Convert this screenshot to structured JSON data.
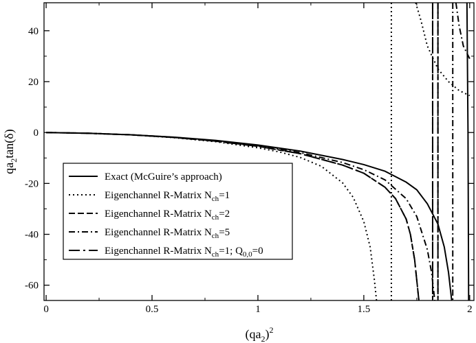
{
  "chart_data": {
    "type": "line",
    "xlabel": {
      "pre": "(qa",
      "sub": "2",
      "post": ")",
      "sup": "2"
    },
    "ylabel": {
      "pre": "qa",
      "sub": "2",
      "post": "tan(δ)"
    },
    "xlim": [
      -0.01,
      2.02
    ],
    "ylim": [
      -66,
      51
    ],
    "xticks": [
      0,
      0.5,
      1,
      1.5,
      2
    ],
    "xtick_labels": [
      "0",
      "0.5",
      "1",
      "1.5",
      "2"
    ],
    "yticks": [
      -60,
      -40,
      -20,
      0,
      20,
      40
    ],
    "ytick_labels": [
      "-60",
      "-40",
      "-20",
      "0",
      "20",
      "40"
    ],
    "grid": false,
    "legend_position": "lower-left",
    "series": [
      {
        "style": "solid",
        "legend": {
          "pre": "Exact (McGuire’s approach)",
          "sub": "",
          "post": "",
          "sub2": "",
          "post2": ""
        },
        "segments": [
          [
            [
              0,
              0
            ],
            [
              0.2,
              -0.3
            ],
            [
              0.4,
              -0.9
            ],
            [
              0.6,
              -1.8
            ],
            [
              0.8,
              -3.1
            ],
            [
              1.0,
              -4.9
            ],
            [
              1.2,
              -7.3
            ],
            [
              1.4,
              -10.6
            ],
            [
              1.5,
              -12.6
            ],
            [
              1.6,
              -15.2
            ],
            [
              1.7,
              -19.5
            ],
            [
              1.75,
              -22.5
            ],
            [
              1.8,
              -28
            ],
            [
              1.85,
              -36
            ],
            [
              1.88,
              -45
            ],
            [
              1.9,
              -55
            ],
            [
              1.915,
              -66
            ]
          ],
          [
            [
              1.987,
              51
            ],
            [
              1.992,
              0
            ],
            [
              1.995,
              -66
            ]
          ]
        ]
      },
      {
        "style": "dotted",
        "legend": {
          "pre": "Eigenchannel R-Matrix N",
          "sub": "ch",
          "post": "=1",
          "sub2": "",
          "post2": ""
        },
        "segments": [
          [
            [
              0,
              0
            ],
            [
              0.2,
              -0.3
            ],
            [
              0.4,
              -0.9
            ],
            [
              0.6,
              -2.0
            ],
            [
              0.8,
              -3.6
            ],
            [
              1.0,
              -6.0
            ],
            [
              1.1,
              -7.6
            ],
            [
              1.2,
              -9.8
            ],
            [
              1.3,
              -13.3
            ],
            [
              1.4,
              -19.8
            ],
            [
              1.45,
              -25.5
            ],
            [
              1.5,
              -35
            ],
            [
              1.53,
              -45
            ],
            [
              1.55,
              -58
            ],
            [
              1.56,
              -66
            ]
          ],
          [
            [
              1.745,
              51
            ],
            [
              1.77,
              44
            ],
            [
              1.8,
              34
            ],
            [
              1.85,
              25
            ],
            [
              1.9,
              20
            ],
            [
              1.95,
              16.5
            ],
            [
              2.0,
              14.5
            ]
          ]
        ],
        "vlines": [
          1.63
        ]
      },
      {
        "style": "dashed",
        "legend": {
          "pre": "Eigenchannel R-Matrix N",
          "sub": "ch",
          "post": "=2",
          "sub2": "",
          "post2": ""
        },
        "segments": [
          [
            [
              0,
              0
            ],
            [
              0.2,
              -0.3
            ],
            [
              0.4,
              -0.9
            ],
            [
              0.6,
              -1.9
            ],
            [
              0.8,
              -3.4
            ],
            [
              1.0,
              -5.4
            ],
            [
              1.2,
              -8.3
            ],
            [
              1.4,
              -12.8
            ],
            [
              1.5,
              -16.0
            ],
            [
              1.6,
              -21.5
            ],
            [
              1.65,
              -26
            ],
            [
              1.7,
              -34
            ],
            [
              1.72,
              -40
            ],
            [
              1.74,
              -50
            ],
            [
              1.76,
              -66
            ]
          ]
        ],
        "vlines": [
          1.825,
          1.85
        ]
      },
      {
        "style": "dashdot",
        "legend": {
          "pre": "Eigenchannel R-Matrix N",
          "sub": "ch",
          "post": "=5",
          "sub2": "",
          "post2": ""
        },
        "segments": [
          [
            [
              0,
              0
            ],
            [
              0.2,
              -0.3
            ],
            [
              0.4,
              -0.9
            ],
            [
              0.6,
              -1.85
            ],
            [
              0.8,
              -3.3
            ],
            [
              1.0,
              -5.2
            ],
            [
              1.2,
              -7.9
            ],
            [
              1.4,
              -11.8
            ],
            [
              1.5,
              -14.6
            ],
            [
              1.6,
              -18.6
            ],
            [
              1.7,
              -26
            ],
            [
              1.75,
              -33
            ],
            [
              1.8,
              -46
            ],
            [
              1.82,
              -55
            ],
            [
              1.835,
              -66
            ]
          ],
          [
            [
              1.935,
              51
            ],
            [
              1.95,
              42
            ],
            [
              1.97,
              34
            ],
            [
              2.0,
              29
            ]
          ]
        ],
        "vlines": [
          1.92
        ]
      },
      {
        "style": "longdashdot",
        "legend": {
          "pre": "Eigenchannel R-Matrix N",
          "sub": "ch",
          "post": "=1; Q",
          "sub2": "0,0",
          "post2": "=0"
        },
        "segments": [
          [
            [
              0,
              0
            ],
            [
              0.2,
              -0.3
            ],
            [
              0.4,
              -0.9
            ],
            [
              0.6,
              -1.9
            ],
            [
              0.8,
              -3.4
            ],
            [
              1.0,
              -5.4
            ],
            [
              1.2,
              -8.3
            ],
            [
              1.4,
              -12.8
            ],
            [
              1.5,
              -16.0
            ],
            [
              1.6,
              -21.5
            ],
            [
              1.65,
              -26
            ],
            [
              1.7,
              -34
            ],
            [
              1.72,
              -40
            ],
            [
              1.74,
              -50
            ],
            [
              1.76,
              -66
            ]
          ]
        ],
        "vlines": [
          1.825,
          1.85
        ]
      }
    ]
  }
}
